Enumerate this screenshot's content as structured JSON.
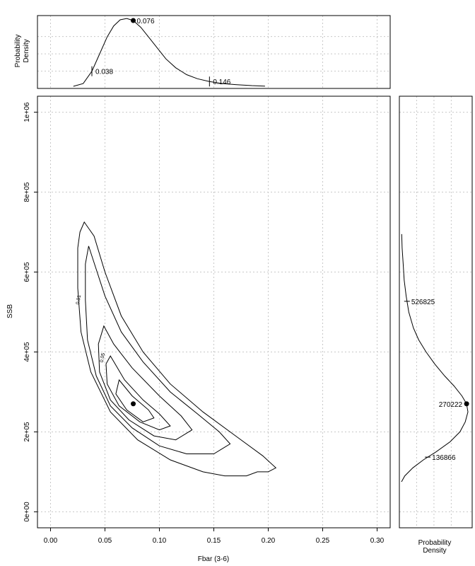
{
  "chart_data": [
    {
      "panel": "top-marginal",
      "type": "line",
      "ylabel_lines": [
        "Probability",
        "Density"
      ],
      "x": [
        0.021,
        0.03,
        0.038,
        0.045,
        0.052,
        0.058,
        0.064,
        0.07,
        0.076,
        0.083,
        0.09,
        0.098,
        0.106,
        0.115,
        0.125,
        0.135,
        0.146,
        0.158,
        0.17,
        0.185,
        0.197
      ],
      "density": [
        0.0,
        0.04,
        0.22,
        0.47,
        0.72,
        0.88,
        0.97,
        0.99,
        0.96,
        0.86,
        0.72,
        0.56,
        0.4,
        0.27,
        0.17,
        0.11,
        0.07,
        0.04,
        0.025,
        0.01,
        0.003
      ],
      "markers": [
        {
          "label": "0.038",
          "x": 0.038,
          "kind": "tick"
        },
        {
          "label": "0.076",
          "x": 0.076,
          "kind": "dot"
        },
        {
          "label": "0.146",
          "x": 0.146,
          "kind": "tick"
        }
      ],
      "xlim": [
        -0.012,
        0.312
      ],
      "grid": true
    },
    {
      "panel": "main",
      "type": "contour",
      "xlabel": "Fbar (3-6)",
      "ylabel": "SSB",
      "xlim": [
        -0.012,
        0.312
      ],
      "ylim": [
        -40000,
        1040000
      ],
      "x_ticks": [
        "0.00",
        "0.05",
        "0.10",
        "0.15",
        "0.20",
        "0.25",
        "0.30"
      ],
      "y_ticks": [
        "0e+00",
        "2e+05",
        "4e+05",
        "6e+05",
        "8e+05",
        "1e+06"
      ],
      "contour_labels": [
        "0.01",
        "0.05"
      ],
      "point": {
        "x": 0.076,
        "y": 270222
      },
      "contours": [
        {
          "level": "outer",
          "points": [
            [
              0.027,
              700000
            ],
            [
              0.031,
              725000
            ],
            [
              0.04,
              690000
            ],
            [
              0.05,
              600000
            ],
            [
              0.065,
              490000
            ],
            [
              0.085,
              400000
            ],
            [
              0.11,
              320000
            ],
            [
              0.14,
              250000
            ],
            [
              0.17,
              190000
            ],
            [
              0.195,
              140000
            ],
            [
              0.207,
              110000
            ],
            [
              0.2,
              100000
            ],
            [
              0.19,
              100000
            ],
            [
              0.18,
              90000
            ],
            [
              0.16,
              90000
            ],
            [
              0.14,
              100000
            ],
            [
              0.11,
              130000
            ],
            [
              0.08,
              180000
            ],
            [
              0.055,
              250000
            ],
            [
              0.037,
              350000
            ],
            [
              0.028,
              450000
            ],
            [
              0.025,
              560000
            ],
            [
              0.025,
              660000
            ],
            [
              0.027,
              700000
            ]
          ]
        },
        {
          "level": "0.01",
          "points": [
            [
              0.035,
              665000
            ],
            [
              0.05,
              540000
            ],
            [
              0.065,
              450000
            ],
            [
              0.085,
              375000
            ],
            [
              0.11,
              300000
            ],
            [
              0.135,
              245000
            ],
            [
              0.155,
              200000
            ],
            [
              0.165,
              170000
            ],
            [
              0.15,
              145000
            ],
            [
              0.125,
              145000
            ],
            [
              0.1,
              165000
            ],
            [
              0.075,
              210000
            ],
            [
              0.055,
              265000
            ],
            [
              0.042,
              340000
            ],
            [
              0.034,
              430000
            ],
            [
              0.032,
              530000
            ],
            [
              0.032,
              620000
            ],
            [
              0.035,
              665000
            ]
          ]
        },
        {
          "level": "mid",
          "points": [
            [
              0.049,
              465000
            ],
            [
              0.058,
              420000
            ],
            [
              0.075,
              360000
            ],
            [
              0.1,
              290000
            ],
            [
              0.12,
              240000
            ],
            [
              0.13,
              205000
            ],
            [
              0.115,
              180000
            ],
            [
              0.095,
              190000
            ],
            [
              0.072,
              230000
            ],
            [
              0.055,
              280000
            ],
            [
              0.045,
              350000
            ],
            [
              0.044,
              420000
            ],
            [
              0.049,
              465000
            ]
          ]
        },
        {
          "level": "0.05",
          "points": [
            [
              0.055,
              390000
            ],
            [
              0.068,
              330000
            ],
            [
              0.085,
              280000
            ],
            [
              0.1,
              245000
            ],
            [
              0.11,
              215000
            ],
            [
              0.1,
              205000
            ],
            [
              0.082,
              225000
            ],
            [
              0.063,
              265000
            ],
            [
              0.052,
              320000
            ],
            [
              0.051,
              370000
            ],
            [
              0.055,
              390000
            ]
          ]
        },
        {
          "level": "inner",
          "points": [
            [
              0.063,
              330000
            ],
            [
              0.075,
              290000
            ],
            [
              0.09,
              255000
            ],
            [
              0.095,
              235000
            ],
            [
              0.085,
              225000
            ],
            [
              0.07,
              255000
            ],
            [
              0.06,
              295000
            ],
            [
              0.063,
              330000
            ]
          ]
        }
      ],
      "grid": true
    },
    {
      "panel": "right-marginal",
      "type": "line",
      "xlabel_lines": [
        "Probability",
        "Density"
      ],
      "ssb": [
        75000,
        90000,
        110000,
        130000,
        150000,
        175000,
        200000,
        225000,
        250000,
        270222,
        290000,
        315000,
        340000,
        370000,
        400000,
        430000,
        460000,
        500000,
        540000,
        580000,
        620000,
        660000,
        695000
      ],
      "density": [
        0.0,
        0.05,
        0.17,
        0.33,
        0.52,
        0.73,
        0.88,
        0.96,
        1.0,
        0.98,
        0.91,
        0.79,
        0.65,
        0.5,
        0.37,
        0.26,
        0.18,
        0.11,
        0.07,
        0.04,
        0.025,
        0.01,
        0.003
      ],
      "markers": [
        {
          "label": "526825",
          "y": 526825,
          "kind": "tick"
        },
        {
          "label": "270222",
          "y": 270222,
          "kind": "dot"
        },
        {
          "label": "136866",
          "y": 136866,
          "kind": "tick"
        }
      ],
      "ylim": [
        -40000,
        1040000
      ],
      "grid": true
    }
  ]
}
